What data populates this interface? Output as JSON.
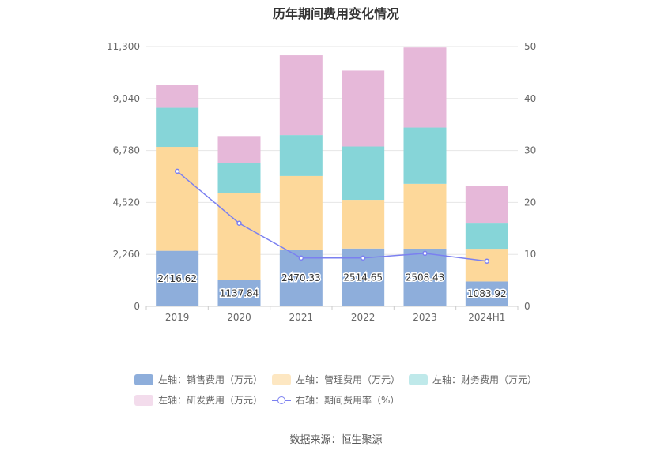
{
  "title": "历年期间费用变化情况",
  "source": "数据来源：恒生聚源",
  "colors": {
    "sales": "#8eaedb",
    "mgmt": "#fdd89a",
    "finance": "#86d5d8",
    "rd": "#e6b8d9",
    "rate": "#7b80f0"
  },
  "legend": [
    {
      "label": "左轴：销售费用（万元）",
      "color": "#8eaedb",
      "type": "bar"
    },
    {
      "label": "左轴：管理费用（万元）",
      "color": "#fde7c2",
      "type": "bar"
    },
    {
      "label": "左轴：财务费用（万元）",
      "color": "#bfe9ea",
      "type": "bar"
    },
    {
      "label": "左轴：研发费用（万元）",
      "color": "#f3dcec",
      "type": "bar"
    },
    {
      "label": "右轴：期间费用率（%）",
      "color": "#7b80f0",
      "type": "line"
    }
  ],
  "chart_data": {
    "type": "bar",
    "stacked": true,
    "categories": [
      "2019",
      "2020",
      "2021",
      "2022",
      "2023",
      "2024H1"
    ],
    "left_axis": {
      "ylim": [
        0,
        11300
      ],
      "ticks": [
        "0",
        "2,260",
        "4,520",
        "6,780",
        "9,040",
        "11,300"
      ]
    },
    "right_axis": {
      "ylim": [
        0,
        50
      ],
      "ticks": [
        "0",
        "10",
        "20",
        "30",
        "40",
        "50"
      ]
    },
    "series": [
      {
        "name": "左轴：销售费用（万元）",
        "axis": "left",
        "values": [
          2416.62,
          1137.84,
          2470.33,
          2514.65,
          2508.43,
          1083.92
        ],
        "labels": [
          "2416.62",
          "1137.84",
          "2470.33",
          "2514.65",
          "2508.43",
          "1083.92"
        ]
      },
      {
        "name": "左轴：管理费用（万元）",
        "axis": "left",
        "values": [
          4520,
          3800,
          3200,
          2120,
          2820,
          1420
        ]
      },
      {
        "name": "左轴：财务费用（万元）",
        "axis": "left",
        "values": [
          1700,
          1280,
          1780,
          2320,
          2450,
          1100
        ]
      },
      {
        "name": "左轴：研发费用（万元）",
        "axis": "left",
        "values": [
          980,
          1190,
          3470,
          3300,
          3480,
          1650
        ]
      },
      {
        "name": "右轴：期间费用率（%）",
        "axis": "right",
        "type": "line",
        "values": [
          26.0,
          16.0,
          9.3,
          9.3,
          10.2,
          8.7
        ]
      }
    ],
    "grid": true,
    "legend_position": "bottom"
  }
}
